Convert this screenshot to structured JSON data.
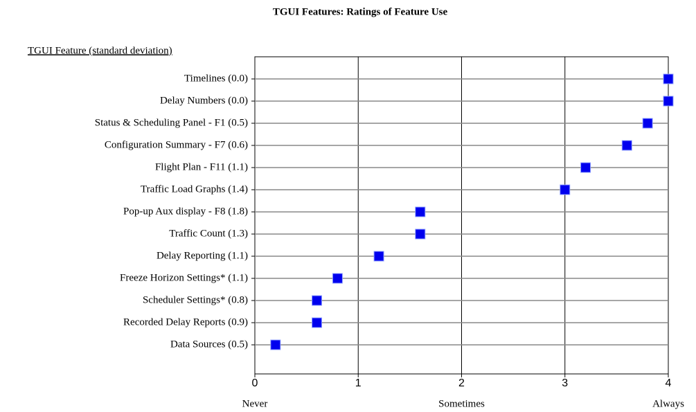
{
  "chart_data": {
    "type": "dot",
    "title": "TGUI Features: Ratings of Feature Use",
    "y_label": "TGUI Feature (standard deviation)",
    "categories": [
      "Timelines (0.0)",
      "Delay Numbers (0.0)",
      "Status & Scheduling Panel - F1 (0.5)",
      "Configuration Summary - F7 (0.6)",
      "Flight Plan - F11 (1.1)",
      "Traffic Load Graphs (1.4)",
      "Pop-up Aux display - F8 (1.8)",
      "Traffic Count (1.3)",
      "Delay Reporting (1.1)",
      "Freeze Horizon Settings* (1.1)",
      "Scheduler Settings* (0.8)",
      "Recorded Delay Reports (0.9)",
      "Data Sources (0.5)"
    ],
    "values": [
      4.0,
      4.0,
      3.8,
      3.6,
      3.2,
      3.0,
      1.6,
      1.6,
      1.2,
      0.8,
      0.6,
      0.6,
      0.2
    ],
    "color": "#0000ee",
    "xlim": [
      0,
      4
    ],
    "xticks": [
      0,
      1,
      2,
      3,
      4
    ],
    "scale_labels": [
      {
        "value": 0,
        "label": "Never"
      },
      {
        "value": 2,
        "label": "Sometimes"
      },
      {
        "value": 4,
        "label": "Always"
      }
    ],
    "grid": true
  }
}
